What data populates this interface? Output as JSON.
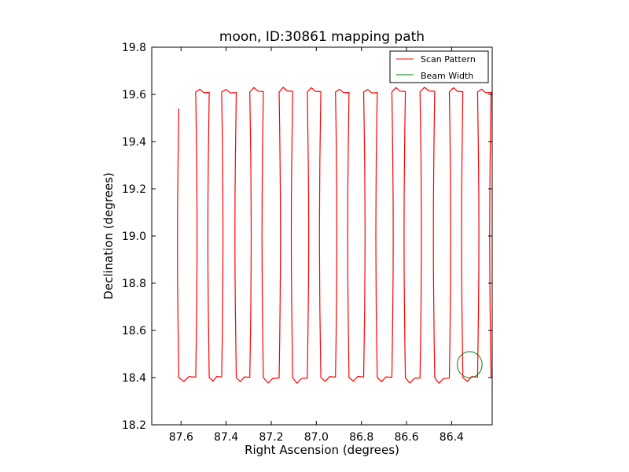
{
  "chart_data": {
    "type": "line",
    "title": "moon, ID:30861 mapping path",
    "xlabel": "Right Ascension (degrees)",
    "ylabel": "Declination (degrees)",
    "xlim": [
      87.73,
      86.22
    ],
    "ylim": [
      18.2,
      19.8
    ],
    "x_reversed": true,
    "xticks": [
      87.6,
      87.4,
      87.2,
      87.0,
      86.8,
      86.6,
      86.4
    ],
    "xtick_labels": [
      "87.6",
      "87.4",
      "87.2",
      "87.0",
      "86.8",
      "86.6",
      "86.4"
    ],
    "yticks": [
      18.2,
      18.4,
      18.6,
      18.8,
      19.0,
      19.2,
      19.4,
      19.6,
      19.8
    ],
    "ytick_labels": [
      "18.2",
      "18.4",
      "18.6",
      "18.8",
      "19.0",
      "19.2",
      "19.4",
      "19.6",
      "19.8"
    ],
    "legend_position": "top-right",
    "series": [
      {
        "name": "Scan Pattern",
        "color": "#ff0000",
        "scan_ra": [
          87.61,
          87.535,
          87.475,
          87.42,
          87.355,
          87.295,
          87.235,
          87.165,
          87.105,
          87.04,
          86.98,
          86.915,
          86.855,
          86.79,
          86.73,
          86.665,
          86.605,
          86.54,
          86.475,
          86.41,
          86.35,
          86.285,
          86.225
        ],
        "dec_low": 18.4,
        "dec_high": 19.61,
        "start_dec": 19.54
      },
      {
        "name": "Beam Width",
        "color": "#008000",
        "shape": "circle",
        "center": [
          86.32,
          18.455
        ],
        "radius": 0.055
      }
    ]
  }
}
